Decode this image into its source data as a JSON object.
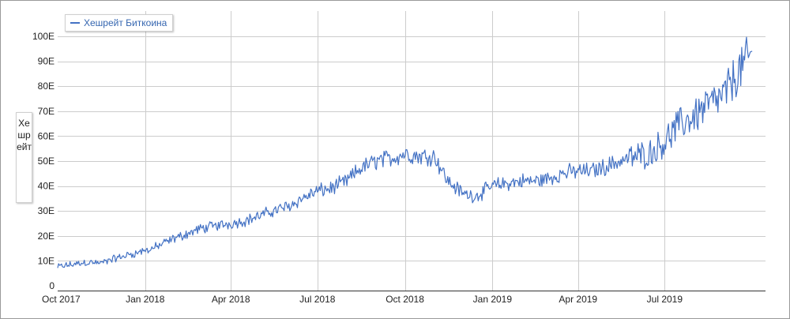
{
  "chart_data": {
    "type": "line",
    "title": "",
    "xlabel": "",
    "ylabel": "Хешрейт",
    "series": [
      {
        "name": "Хешрейт Биткоина",
        "color": "#4472c4",
        "points": [
          [
            "2017-10-01",
            7.5
          ],
          [
            "2017-10-15",
            8.5
          ],
          [
            "2017-11-01",
            9.5
          ],
          [
            "2017-11-15",
            9
          ],
          [
            "2017-12-01",
            11
          ],
          [
            "2017-12-15",
            12.5
          ],
          [
            "2018-01-01",
            14
          ],
          [
            "2018-01-15",
            16
          ],
          [
            "2018-02-01",
            19
          ],
          [
            "2018-02-15",
            21
          ],
          [
            "2018-03-01",
            23
          ],
          [
            "2018-03-15",
            24
          ],
          [
            "2018-04-01",
            25
          ],
          [
            "2018-04-15",
            26
          ],
          [
            "2018-05-01",
            28
          ],
          [
            "2018-05-15",
            30
          ],
          [
            "2018-06-01",
            32
          ],
          [
            "2018-06-15",
            35
          ],
          [
            "2018-07-01",
            38
          ],
          [
            "2018-07-15",
            39
          ],
          [
            "2018-08-01",
            42
          ],
          [
            "2018-08-15",
            47
          ],
          [
            "2018-09-01",
            50
          ],
          [
            "2018-09-15",
            51
          ],
          [
            "2018-10-01",
            53
          ],
          [
            "2018-10-15",
            52
          ],
          [
            "2018-11-01",
            52
          ],
          [
            "2018-11-15",
            42
          ],
          [
            "2018-12-01",
            37
          ],
          [
            "2018-12-15",
            36
          ],
          [
            "2019-01-01",
            40
          ],
          [
            "2019-01-15",
            41
          ],
          [
            "2019-02-01",
            42
          ],
          [
            "2019-02-15",
            42
          ],
          [
            "2019-03-01",
            43
          ],
          [
            "2019-03-15",
            45
          ],
          [
            "2019-04-01",
            46
          ],
          [
            "2019-04-15",
            46
          ],
          [
            "2019-05-01",
            48
          ],
          [
            "2019-05-15",
            50
          ],
          [
            "2019-06-01",
            52
          ],
          [
            "2019-06-15",
            53
          ],
          [
            "2019-07-01",
            58
          ],
          [
            "2019-07-15",
            64
          ],
          [
            "2019-08-01",
            68
          ],
          [
            "2019-08-15",
            72
          ],
          [
            "2019-09-01",
            76
          ],
          [
            "2019-09-15",
            85
          ],
          [
            "2019-10-01",
            93
          ]
        ]
      }
    ],
    "x_ticks": [
      {
        "date": "2017-10-01",
        "label": "Oct 2017"
      },
      {
        "date": "2018-01-01",
        "label": "Jan 2018"
      },
      {
        "date": "2018-04-01",
        "label": "Apr 2018"
      },
      {
        "date": "2018-07-01",
        "label": "Jul 2018"
      },
      {
        "date": "2018-10-01",
        "label": "Oct 2018"
      },
      {
        "date": "2019-01-01",
        "label": "Jan 2019"
      },
      {
        "date": "2019-04-01",
        "label": "Apr 2019"
      },
      {
        "date": "2019-07-01",
        "label": "Jul 2019"
      }
    ],
    "y_ticks": [
      {
        "value": 0,
        "label": "0"
      },
      {
        "value": 10,
        "label": "10E"
      },
      {
        "value": 20,
        "label": "20E"
      },
      {
        "value": 30,
        "label": "30E"
      },
      {
        "value": 40,
        "label": "40E"
      },
      {
        "value": 50,
        "label": "50E"
      },
      {
        "value": 60,
        "label": "60E"
      },
      {
        "value": 70,
        "label": "70E"
      },
      {
        "value": 80,
        "label": "80E"
      },
      {
        "value": 90,
        "label": "90E"
      },
      {
        "value": 100,
        "label": "100E"
      }
    ],
    "xlim": [
      "2017-10-01",
      "2019-10-15"
    ],
    "ylim": [
      0,
      100
    ],
    "grid": true,
    "legend_position": "top-left"
  }
}
